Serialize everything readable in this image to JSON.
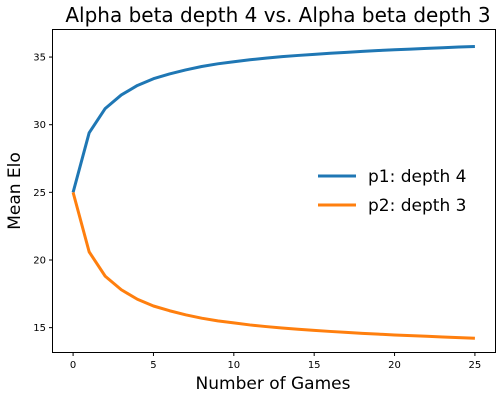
{
  "chart_data": {
    "type": "line",
    "title": "Alpha beta depth 4 vs. Alpha beta depth 3",
    "xlabel": "Number of Games",
    "ylabel": "Mean Elo",
    "xlim": [
      -1.25,
      26.25
    ],
    "ylim": [
      13.2,
      37.0
    ],
    "xticks": [
      0,
      5,
      10,
      15,
      20,
      25
    ],
    "yticks": [
      15,
      20,
      25,
      30,
      35
    ],
    "grid": false,
    "legend_position": "center-right",
    "x": [
      0,
      1,
      2,
      3,
      4,
      5,
      6,
      7,
      8,
      9,
      10,
      11,
      12,
      13,
      14,
      15,
      16,
      17,
      18,
      19,
      20,
      21,
      22,
      23,
      24,
      25
    ],
    "series": [
      {
        "name": "p1: depth 4",
        "color": "#1f77b4",
        "values": [
          25.0,
          29.4,
          31.2,
          32.2,
          32.9,
          33.4,
          33.75,
          34.05,
          34.3,
          34.5,
          34.65,
          34.8,
          34.92,
          35.03,
          35.12,
          35.2,
          35.28,
          35.35,
          35.42,
          35.48,
          35.54,
          35.59,
          35.64,
          35.69,
          35.74,
          35.78
        ]
      },
      {
        "name": "p2: depth 3",
        "color": "#ff7f0e",
        "values": [
          25.0,
          20.6,
          18.8,
          17.8,
          17.1,
          16.6,
          16.25,
          15.95,
          15.7,
          15.5,
          15.35,
          15.2,
          15.08,
          14.97,
          14.88,
          14.8,
          14.72,
          14.65,
          14.58,
          14.52,
          14.46,
          14.41,
          14.36,
          14.31,
          14.26,
          14.22
        ]
      }
    ]
  }
}
